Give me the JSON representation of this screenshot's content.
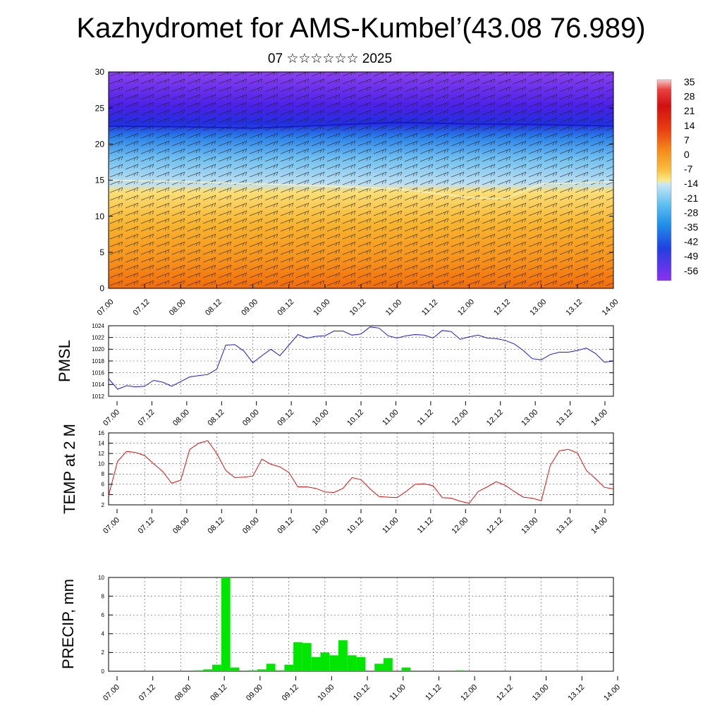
{
  "title": "Kazhydromet for AMS-Kumbel’(43.08 76.989)",
  "subtitle": "07 ☆☆☆☆☆☆ 2025",
  "time_tick_labels": [
    "07.00",
    "07.12",
    "08.00",
    "08.12",
    "09.00",
    "09.12",
    "10.00",
    "10.12",
    "11.00",
    "11.12",
    "12.00",
    "12.12",
    "13.00",
    "13.12",
    "14.00"
  ],
  "colors": {
    "pmsl_line": "#1a1ae0",
    "temp_line": "#e01010",
    "precip_bar": "#00e600"
  },
  "chart_data": [
    {
      "type": "heatmap",
      "name": "temperature-wind-cross-section",
      "ylim": [
        0,
        30
      ],
      "y_ticks": [
        0,
        5,
        10,
        15,
        20,
        25,
        30
      ],
      "xlim": [
        0,
        168
      ],
      "colorbar_labels": [
        "35",
        "28",
        "21",
        "14",
        "7",
        "0",
        "-7",
        "-14",
        "-21",
        "-28",
        "-35",
        "-42",
        "-49",
        "-56"
      ],
      "freezing_level": {
        "x": [
          0,
          24,
          48,
          72,
          96,
          108,
          120,
          132,
          144,
          156,
          168
        ],
        "y": [
          15.0,
          14.8,
          14.5,
          14.2,
          13.8,
          13.2,
          12.6,
          12.4,
          14.5,
          14.6,
          14.8
        ]
      },
      "tropopause_level": {
        "x": [
          0,
          24,
          48,
          72,
          96,
          120,
          144,
          168
        ],
        "y": [
          22.5,
          22.4,
          22.2,
          22.6,
          23.0,
          22.8,
          22.7,
          22.5
        ]
      },
      "overlay": "wind barbs"
    },
    {
      "type": "line",
      "ylabel": "PMSL",
      "ylim": [
        1012,
        1024
      ],
      "y_ticks": [
        1012,
        1014,
        1016,
        1018,
        1020,
        1022,
        1024
      ],
      "x": [
        0,
        3,
        6,
        9,
        12,
        15,
        18,
        21,
        24,
        27,
        30,
        33,
        36,
        39,
        42,
        45,
        48,
        51,
        54,
        57,
        60,
        63,
        66,
        69,
        72,
        75,
        78,
        81,
        84,
        87,
        90,
        93,
        96,
        99,
        102,
        105,
        108,
        111,
        114,
        117,
        120,
        123,
        126,
        129,
        132,
        135,
        138,
        141,
        144,
        147,
        150,
        153,
        156,
        159,
        162,
        165,
        168
      ],
      "values": [
        1015.0,
        1013.2,
        1013.8,
        1013.6,
        1013.7,
        1014.7,
        1014.4,
        1013.7,
        1014.5,
        1015.3,
        1015.5,
        1015.7,
        1016.6,
        1020.7,
        1020.8,
        1019.7,
        1017.7,
        1018.9,
        1020.0,
        1018.9,
        1020.7,
        1022.5,
        1021.9,
        1022.2,
        1022.3,
        1023.1,
        1023.1,
        1022.4,
        1022.6,
        1023.8,
        1023.6,
        1022.3,
        1021.9,
        1022.3,
        1022.5,
        1022.4,
        1021.9,
        1023.2,
        1023.0,
        1021.7,
        1022.1,
        1022.4,
        1021.9,
        1021.8,
        1021.5,
        1020.9,
        1019.8,
        1018.4,
        1018.2,
        1019.1,
        1019.5,
        1019.5,
        1019.8,
        1020.2,
        1019.3,
        1017.8,
        1018.0
      ]
    },
    {
      "type": "line",
      "ylabel": "TEMP at 2 M",
      "ylim": [
        2,
        16
      ],
      "y_ticks": [
        2,
        4,
        6,
        8,
        10,
        12,
        14,
        16
      ],
      "x": [
        0,
        3,
        6,
        9,
        12,
        15,
        18,
        21,
        24,
        27,
        30,
        33,
        36,
        39,
        42,
        45,
        48,
        51,
        54,
        57,
        60,
        63,
        66,
        69,
        72,
        75,
        78,
        81,
        84,
        87,
        90,
        93,
        96,
        99,
        102,
        105,
        108,
        111,
        114,
        117,
        120,
        123,
        126,
        129,
        132,
        135,
        138,
        141,
        144,
        147,
        150,
        153,
        156,
        159,
        162,
        165,
        168
      ],
      "values": [
        3.8,
        10.5,
        12.4,
        12.2,
        11.6,
        10.0,
        8.5,
        6.2,
        6.8,
        12.8,
        14.0,
        14.5,
        12.0,
        8.7,
        7.3,
        7.4,
        7.6,
        10.9,
        9.9,
        9.4,
        8.3,
        5.5,
        5.5,
        5.2,
        4.5,
        4.4,
        5.2,
        7.3,
        6.9,
        5.1,
        3.6,
        3.5,
        3.4,
        4.6,
        6.0,
        6.1,
        5.7,
        3.4,
        3.3,
        2.7,
        2.3,
        4.6,
        5.5,
        6.5,
        5.8,
        4.6,
        3.5,
        3.3,
        2.8,
        9.7,
        12.5,
        12.8,
        12.1,
        8.7,
        7.1,
        5.4,
        5.1
      ]
    },
    {
      "type": "bar",
      "ylabel": "PRECIP, mm",
      "ylim": [
        0,
        10
      ],
      "y_ticks": [
        0,
        2,
        4,
        6,
        8,
        10
      ],
      "bar_width": 3,
      "x": [
        30,
        33,
        36,
        39,
        42,
        45,
        48,
        51,
        54,
        57,
        60,
        63,
        66,
        69,
        72,
        75,
        78,
        81,
        84,
        87,
        90,
        93,
        96,
        99,
        102,
        105,
        108,
        111,
        114,
        117,
        120,
        123,
        126,
        129
      ],
      "values": [
        0.1,
        0.2,
        0.7,
        10,
        0.4,
        0,
        0.1,
        0.2,
        0.8,
        0.1,
        0.7,
        3.1,
        3.0,
        1.5,
        2.0,
        1.7,
        3.3,
        1.7,
        1.5,
        0,
        0.8,
        1.4,
        0,
        0.4,
        0,
        0,
        0,
        0,
        0,
        0.1,
        0,
        0,
        0,
        0
      ]
    }
  ]
}
